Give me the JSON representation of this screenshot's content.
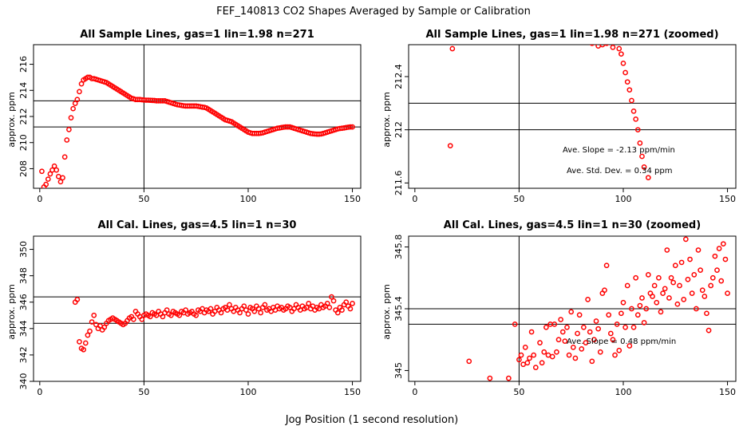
{
  "figure": {
    "title": "FEF_140813  CO2 Shapes Averaged by Sample or Calibration",
    "xlabel": "Jog Position (1 second resolution)"
  },
  "colors": {
    "points": "#ff0000",
    "lines": "#000000",
    "frame": "#000000"
  },
  "chart_data": [
    {
      "type": "scatter",
      "title": "All Sample Lines, gas=1 lin=1.98 n=271",
      "ylabel": "approx. ppm",
      "xlim": [
        -3,
        154
      ],
      "ylim": [
        206.5,
        217.5
      ],
      "xticks": [
        0,
        50,
        100,
        150
      ],
      "yticks": [
        208,
        210,
        212,
        214,
        216
      ],
      "vline": 50,
      "hlines": [
        211.2,
        213.2
      ],
      "annotations": [],
      "x": [
        1,
        2,
        3,
        4,
        5,
        6,
        7,
        8,
        9,
        10,
        11,
        12,
        13,
        14,
        15,
        16,
        17,
        18,
        19,
        20,
        21,
        22,
        23,
        24,
        25,
        26,
        27,
        28,
        29,
        30,
        31,
        32,
        33,
        34,
        35,
        36,
        37,
        38,
        39,
        40,
        41,
        42,
        43,
        44,
        45,
        46,
        47,
        48,
        49,
        50,
        51,
        52,
        53,
        54,
        55,
        56,
        57,
        58,
        59,
        60,
        61,
        62,
        63,
        64,
        65,
        66,
        67,
        68,
        69,
        70,
        71,
        72,
        73,
        74,
        75,
        76,
        77,
        78,
        79,
        80,
        81,
        82,
        83,
        84,
        85,
        86,
        87,
        88,
        89,
        90,
        91,
        92,
        93,
        94,
        95,
        96,
        97,
        98,
        99,
        100,
        101,
        102,
        103,
        104,
        105,
        106,
        107,
        108,
        109,
        110,
        111,
        112,
        113,
        114,
        115,
        116,
        117,
        118,
        119,
        120,
        121,
        122,
        123,
        124,
        125,
        126,
        127,
        128,
        129,
        130,
        131,
        132,
        133,
        134,
        135,
        136,
        137,
        138,
        139,
        140,
        141,
        142,
        143,
        144,
        145,
        146,
        147,
        148,
        149,
        150
      ],
      "y": [
        207.8,
        206.6,
        206.8,
        207.2,
        207.6,
        207.9,
        208.2,
        207.9,
        207.4,
        207.0,
        207.3,
        208.9,
        210.2,
        211.0,
        211.9,
        212.6,
        213.0,
        213.3,
        213.9,
        214.5,
        214.8,
        214.9,
        215.0,
        215.0,
        214.9,
        214.9,
        214.85,
        214.8,
        214.75,
        214.7,
        214.65,
        214.6,
        214.5,
        214.4,
        214.3,
        214.2,
        214.1,
        214.0,
        213.9,
        213.8,
        213.7,
        213.6,
        213.5,
        213.4,
        213.35,
        213.3,
        213.3,
        213.3,
        213.28,
        213.26,
        213.25,
        213.25,
        213.24,
        213.23,
        213.22,
        213.2,
        213.2,
        213.2,
        213.2,
        213.2,
        213.15,
        213.1,
        213.05,
        213.0,
        212.95,
        212.9,
        212.88,
        212.85,
        212.82,
        212.8,
        212.8,
        212.8,
        212.8,
        212.8,
        212.8,
        212.78,
        212.75,
        212.72,
        212.7,
        212.65,
        212.55,
        212.45,
        212.35,
        212.25,
        212.15,
        212.05,
        211.95,
        211.85,
        211.75,
        211.7,
        211.65,
        211.6,
        211.5,
        211.4,
        211.3,
        211.2,
        211.1,
        211.0,
        210.9,
        210.8,
        210.75,
        210.7,
        210.7,
        210.7,
        210.7,
        210.72,
        210.75,
        210.8,
        210.85,
        210.9,
        210.95,
        211.0,
        211.05,
        211.1,
        211.12,
        211.15,
        211.18,
        211.2,
        211.2,
        211.2,
        211.15,
        211.1,
        211.05,
        211.0,
        210.95,
        210.9,
        210.85,
        210.8,
        210.75,
        210.7,
        210.68,
        210.66,
        210.65,
        210.65,
        210.66,
        210.7,
        210.75,
        210.8,
        210.85,
        210.9,
        210.95,
        211.0,
        211.05,
        211.08,
        211.1,
        211.12,
        211.15,
        211.18,
        211.2,
        211.2
      ]
    },
    {
      "type": "scatter",
      "title": "All Sample Lines, gas=1 lin=1.98 n=271 (zoomed)",
      "ylabel": "approx. ppm",
      "xlim": [
        -3,
        154
      ],
      "ylim": [
        211.56,
        212.64
      ],
      "xticks": [
        0,
        50,
        100,
        150
      ],
      "yticks": [
        211.6,
        212.0,
        212.4
      ],
      "vline": 50,
      "hlines": [
        212.0,
        212.2
      ],
      "annotations": [
        "Ave. Slope = -2.13  ppm/min",
        "Ave. Std. Dev. = 0.34  ppm"
      ],
      "x": [
        17,
        18,
        85,
        88,
        90,
        92,
        95,
        98,
        99,
        100,
        101,
        102,
        103,
        104,
        105,
        106,
        107,
        108,
        109,
        110,
        112
      ],
      "y": [
        211.88,
        212.61,
        212.65,
        212.63,
        212.64,
        212.65,
        212.62,
        212.61,
        212.57,
        212.5,
        212.43,
        212.36,
        212.3,
        212.22,
        212.14,
        212.08,
        212.0,
        211.9,
        211.8,
        211.72,
        211.64
      ]
    },
    {
      "type": "scatter",
      "title": "All Cal. Lines, gas=4.5 lin=1 n=30",
      "ylabel": "approx. ppm",
      "xlim": [
        -3,
        154
      ],
      "ylim": [
        340,
        351
      ],
      "xticks": [
        0,
        50,
        100,
        150
      ],
      "yticks": [
        340,
        342,
        344,
        346,
        348,
        350
      ],
      "vline": 50,
      "hlines": [
        344.4,
        346.4
      ],
      "annotations": [],
      "x": [
        17,
        18,
        19,
        20,
        21,
        22,
        23,
        24,
        25,
        26,
        27,
        28,
        29,
        30,
        31,
        32,
        33,
        34,
        35,
        36,
        37,
        38,
        39,
        40,
        41,
        42,
        43,
        44,
        45,
        46,
        47,
        48,
        49,
        50,
        51,
        52,
        53,
        54,
        55,
        56,
        57,
        58,
        59,
        60,
        61,
        62,
        63,
        64,
        65,
        66,
        67,
        68,
        69,
        70,
        71,
        72,
        73,
        74,
        75,
        76,
        77,
        78,
        79,
        80,
        81,
        82,
        83,
        84,
        85,
        86,
        87,
        88,
        89,
        90,
        91,
        92,
        93,
        94,
        95,
        96,
        97,
        98,
        99,
        100,
        101,
        102,
        103,
        104,
        105,
        106,
        107,
        108,
        109,
        110,
        111,
        112,
        113,
        114,
        115,
        116,
        117,
        118,
        119,
        120,
        121,
        122,
        123,
        124,
        125,
        126,
        127,
        128,
        129,
        130,
        131,
        132,
        133,
        134,
        135,
        136,
        137,
        138,
        139,
        140,
        141,
        142,
        143,
        144,
        145,
        146,
        147,
        148,
        149,
        150
      ],
      "y": [
        346.0,
        346.2,
        343.0,
        342.5,
        342.4,
        342.9,
        343.5,
        343.8,
        344.5,
        345.0,
        344.3,
        344.0,
        344.2,
        343.9,
        344.1,
        344.4,
        344.6,
        344.7,
        344.8,
        344.7,
        344.6,
        344.5,
        344.4,
        344.3,
        344.4,
        344.6,
        344.8,
        344.9,
        344.7,
        345.3,
        345.1,
        344.9,
        344.7,
        345.0,
        345.1,
        345.0,
        344.9,
        345.2,
        345.1,
        345.0,
        345.3,
        345.1,
        344.9,
        345.2,
        345.4,
        345.1,
        345.0,
        345.3,
        345.2,
        345.1,
        345.0,
        345.3,
        345.2,
        345.4,
        345.1,
        345.2,
        345.3,
        345.1,
        345.0,
        345.4,
        345.3,
        345.5,
        345.2,
        345.4,
        345.3,
        345.5,
        345.1,
        345.3,
        345.6,
        345.4,
        345.2,
        345.5,
        345.6,
        345.4,
        345.8,
        345.5,
        345.3,
        345.6,
        345.4,
        345.2,
        345.5,
        345.7,
        345.4,
        345.1,
        345.6,
        345.5,
        345.3,
        345.7,
        345.5,
        345.2,
        345.6,
        345.8,
        345.4,
        345.5,
        345.3,
        345.6,
        345.4,
        345.7,
        345.5,
        345.6,
        345.4,
        345.5,
        345.7,
        345.6,
        345.3,
        345.5,
        345.8,
        345.6,
        345.4,
        345.7,
        345.5,
        345.6,
        345.9,
        345.5,
        345.7,
        345.4,
        345.6,
        345.5,
        345.8,
        345.6,
        345.7,
        345.9,
        345.6,
        346.4,
        346.1,
        345.4,
        345.2,
        345.6,
        345.4,
        345.8,
        346.0,
        345.7,
        345.5,
        345.9
      ]
    },
    {
      "type": "scatter",
      "title": "All Cal. Lines, gas=4.5 lin=1 n=30 (zoomed)",
      "ylabel": "approx. ppm",
      "xlim": [
        -3,
        154
      ],
      "ylim": [
        344.93,
        345.87
      ],
      "xticks": [
        0,
        50,
        100,
        150
      ],
      "yticks": [
        345.0,
        345.4,
        345.8
      ],
      "vline": 50,
      "hlines": [
        345.3,
        345.4
      ],
      "annotations": [
        "Ave. Slope = 0.48  ppm/min"
      ],
      "x": [
        26,
        36,
        45,
        48,
        50,
        51,
        52,
        53,
        54,
        55,
        56,
        57,
        58,
        60,
        61,
        62,
        63,
        64,
        65,
        66,
        67,
        68,
        69,
        70,
        71,
        72,
        73,
        74,
        75,
        76,
        77,
        78,
        79,
        80,
        81,
        82,
        83,
        84,
        85,
        86,
        87,
        88,
        89,
        90,
        91,
        92,
        93,
        94,
        95,
        96,
        97,
        98,
        99,
        100,
        101,
        102,
        103,
        104,
        105,
        106,
        107,
        108,
        109,
        110,
        111,
        112,
        113,
        114,
        115,
        116,
        117,
        118,
        119,
        120,
        121,
        122,
        123,
        124,
        125,
        126,
        127,
        128,
        129,
        130,
        131,
        132,
        133,
        134,
        135,
        136,
        137,
        138,
        139,
        140,
        141,
        142,
        143,
        144,
        145,
        146,
        147,
        148,
        149,
        150
      ],
      "y": [
        345.06,
        344.95,
        344.95,
        345.3,
        345.07,
        345.1,
        345.04,
        345.15,
        345.05,
        345.08,
        345.25,
        345.1,
        345.02,
        345.18,
        345.05,
        345.12,
        345.28,
        345.1,
        345.3,
        345.09,
        345.3,
        345.12,
        345.2,
        345.33,
        345.25,
        345.19,
        345.28,
        345.1,
        345.38,
        345.15,
        345.08,
        345.24,
        345.36,
        345.14,
        345.28,
        345.18,
        345.46,
        345.25,
        345.06,
        345.2,
        345.32,
        345.27,
        345.12,
        345.5,
        345.52,
        345.68,
        345.36,
        345.24,
        345.2,
        345.1,
        345.3,
        345.13,
        345.37,
        345.44,
        345.28,
        345.55,
        345.16,
        345.4,
        345.28,
        345.6,
        345.36,
        345.42,
        345.47,
        345.31,
        345.4,
        345.62,
        345.5,
        345.48,
        345.55,
        345.44,
        345.6,
        345.38,
        345.5,
        345.53,
        345.78,
        345.47,
        345.6,
        345.57,
        345.68,
        345.43,
        345.55,
        345.7,
        345.46,
        345.85,
        345.59,
        345.72,
        345.5,
        345.62,
        345.4,
        345.78,
        345.65,
        345.52,
        345.48,
        345.37,
        345.26,
        345.55,
        345.6,
        345.74,
        345.65,
        345.79,
        345.58,
        345.82,
        345.72,
        345.5
      ]
    }
  ]
}
